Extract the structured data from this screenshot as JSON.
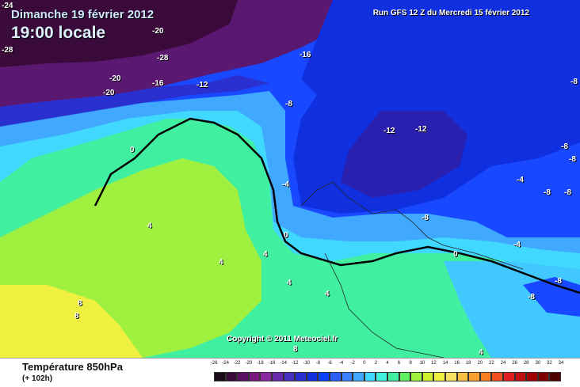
{
  "header": {
    "date": "Dimanche 19 février 2012",
    "local_time": "19:00 locale",
    "run": "Run GFS 12 Z du Mercredi 15 février 2012"
  },
  "map": {
    "copyright": "Copyright © 2011 Meteociel.fr",
    "isotherm_labels": [
      "-24",
      "-20",
      "-28",
      "-28",
      "-16",
      "-20",
      "-16",
      "-12",
      "-20",
      "-8",
      "-12",
      "-12",
      "-8",
      "0",
      "-8",
      "-4",
      "-8",
      "-8",
      "-8",
      "-4",
      "-8",
      "-4",
      "0",
      "4",
      "0",
      "4",
      "4",
      "4",
      "-8",
      "8",
      "8",
      "-8",
      "4",
      "8",
      "4"
    ]
  },
  "footer": {
    "parameter": "Température 850hPa",
    "lead_time": "(+ 102h)"
  },
  "legend": {
    "ticks": [
      "-26",
      "-24",
      "-22",
      "-20",
      "-18",
      "-16",
      "-14",
      "-12",
      "-10",
      "-8",
      "-6",
      "-4",
      "-2",
      "0",
      "2",
      "4",
      "6",
      "8",
      "10",
      "12",
      "14",
      "16",
      "18",
      "20",
      "22",
      "24",
      "26",
      "28",
      "30",
      "32",
      "34"
    ],
    "colors": [
      "#1a0a1a",
      "#3a0a3a",
      "#5a1060",
      "#7a1880",
      "#8a2aa0",
      "#6a2ab0",
      "#4a30c0",
      "#2a30d0",
      "#1030e0",
      "#0a40ff",
      "#2a60ff",
      "#3a80ff",
      "#40a8ff",
      "#40d8ff",
      "#40f0e0",
      "#40f0a0",
      "#60f060",
      "#a0f040",
      "#d0f030",
      "#f0f040",
      "#f8e060",
      "#f8c040",
      "#f8a030",
      "#f88020",
      "#f05020",
      "#e02020",
      "#c01010",
      "#a00000",
      "#800000",
      "#500000"
    ]
  }
}
